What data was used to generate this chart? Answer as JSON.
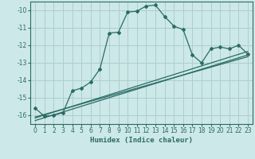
{
  "xlabel": "Humidex (Indice chaleur)",
  "ylabel": "",
  "bg_color": "#cde8e8",
  "line_color": "#2a6b65",
  "grid_color": "#aacfcf",
  "xlim": [
    -0.5,
    23.5
  ],
  "ylim": [
    -16.5,
    -9.5
  ],
  "yticks": [
    -16,
    -15,
    -14,
    -13,
    -12,
    -11,
    -10
  ],
  "xticks": [
    0,
    1,
    2,
    3,
    4,
    5,
    6,
    7,
    8,
    9,
    10,
    11,
    12,
    13,
    14,
    15,
    16,
    17,
    18,
    19,
    20,
    21,
    22,
    23
  ],
  "main_x": [
    0,
    1,
    2,
    3,
    4,
    5,
    6,
    7,
    8,
    9,
    10,
    11,
    12,
    13,
    14,
    15,
    16,
    17,
    18,
    19,
    20,
    21,
    22,
    23
  ],
  "main_y": [
    -15.6,
    -16.05,
    -16.0,
    -15.85,
    -14.6,
    -14.45,
    -14.1,
    -13.35,
    -11.3,
    -11.25,
    -10.1,
    -10.05,
    -9.75,
    -9.7,
    -10.35,
    -10.9,
    -11.1,
    -12.55,
    -13.0,
    -12.2,
    -12.1,
    -12.2,
    -12.0,
    -12.5
  ],
  "line2_x": [
    0,
    23
  ],
  "line2_y": [
    -16.15,
    -12.35
  ],
  "line3_x": [
    0,
    23
  ],
  "line3_y": [
    -16.3,
    -12.55
  ],
  "line4_x": [
    0,
    23
  ],
  "line4_y": [
    -16.1,
    -12.65
  ]
}
